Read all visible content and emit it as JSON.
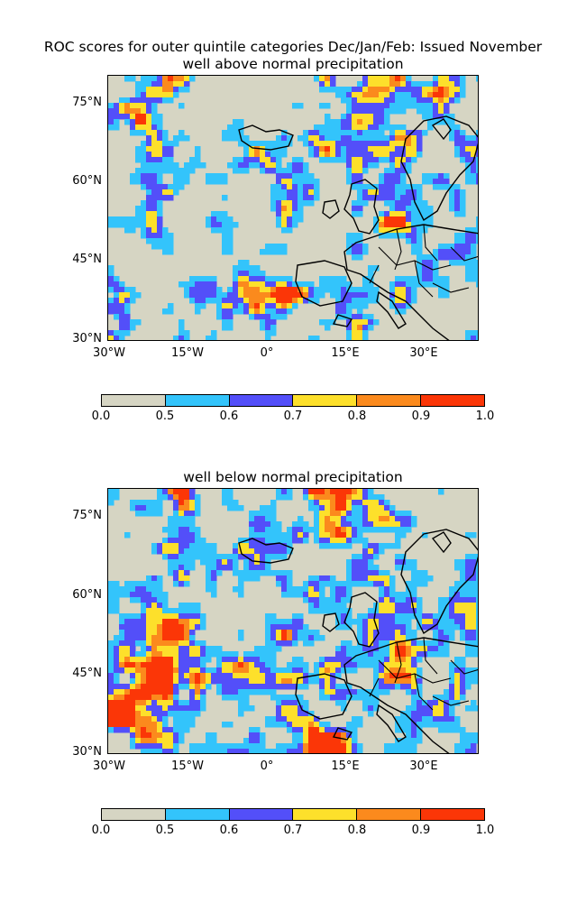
{
  "figure": {
    "title_line1": "ROC scores for outer quintile categories Dec/Jan/Feb: Issued November"
  },
  "panels": [
    {
      "subtitle": "well above normal precipitation",
      "lat_ticks": [
        "75°N",
        "60°N",
        "45°N",
        "30°N"
      ],
      "lon_ticks": [
        "30°W",
        "15°W",
        "0°",
        "15°E",
        "30°E"
      ]
    },
    {
      "subtitle": "well below normal precipitation",
      "lat_ticks": [
        "75°N",
        "60°N",
        "45°N",
        "30°N"
      ],
      "lon_ticks": [
        "30°W",
        "15°W",
        "0°",
        "15°E",
        "30°E"
      ]
    }
  ],
  "colorbar": {
    "labels": [
      "0.0",
      "0.5",
      "0.6",
      "0.7",
      "0.8",
      "0.9",
      "1.0"
    ],
    "colors": [
      "#d6d5c3",
      "#33c4fb",
      "#534ff9",
      "#fde02b",
      "#fb8a1d",
      "#fb3607"
    ]
  },
  "map_extent": {
    "lon": [
      -30,
      41
    ],
    "lat": [
      30,
      81
    ]
  }
}
